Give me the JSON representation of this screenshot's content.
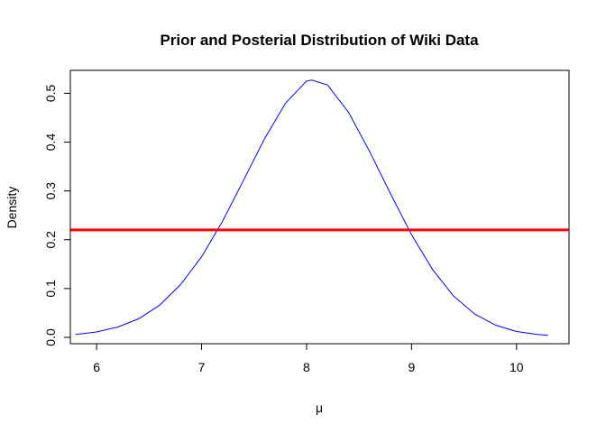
{
  "chart_data": {
    "type": "line",
    "title": "Prior and Posterial Distribution of Wiki Data",
    "xlabel": "μ",
    "ylabel": "Density",
    "xlim": [
      5.75,
      10.5
    ],
    "ylim": [
      -0.013,
      0.547
    ],
    "x_ticks": [
      6,
      7,
      8,
      9,
      10
    ],
    "y_ticks": [
      0.0,
      0.1,
      0.2,
      0.3,
      0.4,
      0.5
    ],
    "x_tick_labels": [
      "6",
      "7",
      "8",
      "9",
      "10"
    ],
    "y_tick_labels": [
      "0.0",
      "0.1",
      "0.2",
      "0.3",
      "0.4",
      "0.5"
    ],
    "grid": false,
    "legend": "none",
    "series": [
      {
        "style": "curve",
        "color": "#0000ff",
        "x": [
          5.8,
          6.0,
          6.2,
          6.4,
          6.6,
          6.8,
          7.0,
          7.2,
          7.4,
          7.6,
          7.8,
          8.0,
          8.05,
          8.2,
          8.4,
          8.6,
          8.8,
          9.0,
          9.2,
          9.4,
          9.6,
          9.8,
          10.0,
          10.2,
          10.3
        ],
        "y": [
          0.006,
          0.011,
          0.021,
          0.038,
          0.066,
          0.108,
          0.165,
          0.238,
          0.322,
          0.407,
          0.48,
          0.525,
          0.527,
          0.517,
          0.461,
          0.381,
          0.294,
          0.21,
          0.139,
          0.085,
          0.048,
          0.025,
          0.012,
          0.006,
          0.004
        ]
      },
      {
        "style": "hline",
        "color": "#ff0000",
        "y": 0.22
      }
    ]
  }
}
